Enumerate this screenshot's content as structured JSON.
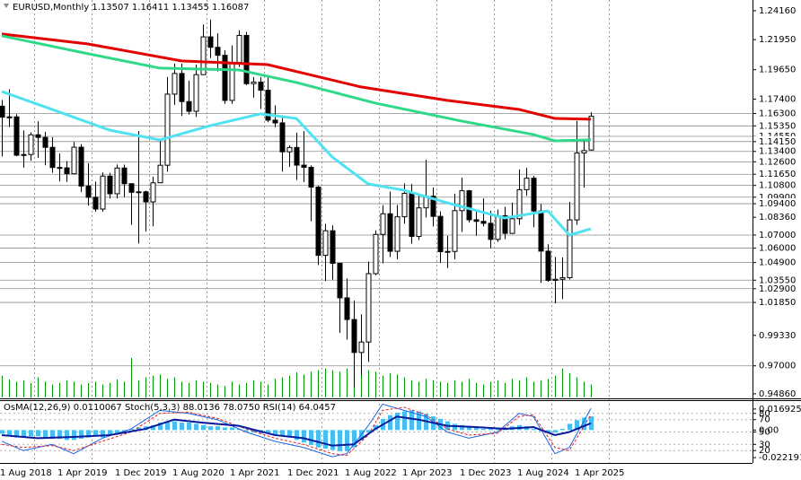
{
  "chart_data": [
    {
      "type": "candlestick",
      "title": "EURUSD,Monthly",
      "categories": [
        "1 Aug 2018",
        null,
        null,
        null,
        null,
        null,
        null,
        null,
        "1 Apr 2019",
        null,
        null,
        null,
        null,
        null,
        null,
        null,
        "1 Dec 2019",
        null,
        null,
        null,
        null,
        null,
        null,
        null,
        "1 Aug 2020",
        null,
        null,
        null,
        null,
        null,
        null,
        null,
        "1 Apr 2021",
        null,
        null,
        null,
        null,
        null,
        null,
        null,
        "1 Dec 2021",
        null,
        null,
        null,
        null,
        null,
        null,
        null,
        "1 Aug 2022",
        null,
        null,
        null,
        null,
        null,
        null,
        null,
        "1 Apr 2023",
        null,
        null,
        null,
        null,
        null,
        null,
        null,
        "1 Dec 2023",
        null,
        null,
        null,
        null,
        null,
        null,
        null,
        "1 Aug 2024",
        null,
        null,
        null,
        null,
        null,
        null,
        null,
        "1 Apr 2025",
        null,
        null
      ],
      "open": [
        1.1686,
        1.1602,
        1.1604,
        1.1311,
        1.1316,
        1.1467,
        1.1447,
        1.1371,
        1.1217,
        1.1214,
        1.1169,
        1.1372,
        1.1075,
        1.0989,
        1.0899,
        1.1151,
        1.1016,
        1.1213,
        1.1093,
        1.1027,
        1.1031,
        1.0954,
        1.11,
        1.1234,
        1.1778,
        1.1936,
        1.1721,
        1.1647,
        1.1927,
        1.2216,
        1.2136,
        1.2075,
        1.173,
        1.202,
        1.2227,
        1.1858,
        1.187,
        1.1808,
        1.1579,
        1.1558,
        1.1337,
        1.137,
        1.1235,
        1.1218,
        1.1067,
        1.0545,
        1.0733,
        1.0484,
        1.022,
        1.0054,
        0.9802,
        0.9882,
        1.0405,
        1.0705,
        1.0863,
        1.0576,
        1.084,
        1.1019,
        1.069,
        1.0908,
        1.0997,
        1.0843,
        1.0573,
        1.0575,
        1.0887,
        1.1039,
        1.0817,
        1.0805,
        1.079,
        1.0667,
        1.0848,
        1.0713,
        1.0825,
        1.1047,
        1.1135,
        1.0884,
        1.0577,
        1.0354,
        1.0362,
        1.0374,
        1.0816,
        1.1328,
        1.13507
      ],
      "high": [
        1.1734,
        1.1815,
        1.1625,
        1.15,
        1.1486,
        1.157,
        1.1488,
        1.1448,
        1.1324,
        1.1265,
        1.1412,
        1.1395,
        1.125,
        1.1109,
        1.1179,
        1.1176,
        1.124,
        1.1239,
        1.1096,
        1.1496,
        1.104,
        1.1147,
        1.1422,
        1.1909,
        1.2011,
        1.2011,
        1.1881,
        1.2004,
        1.231,
        1.2349,
        1.2243,
        1.2113,
        1.215,
        1.2266,
        1.2254,
        1.1909,
        1.1909,
        1.1909,
        1.1692,
        1.1616,
        1.1386,
        1.1483,
        1.1495,
        1.1233,
        1.1076,
        1.0787,
        1.0774,
        1.0486,
        1.0368,
        1.0198,
        1.0094,
        1.0497,
        1.0736,
        1.0929,
        1.1033,
        1.093,
        1.1095,
        1.1092,
        1.1012,
        1.1276,
        1.1065,
        1.0882,
        1.0695,
        1.1017,
        1.1139,
        1.1046,
        1.0889,
        1.0981,
        1.0885,
        1.0895,
        1.0916,
        1.0948,
        1.1202,
        1.1214,
        1.1152,
        1.0937,
        1.063,
        1.0533,
        1.0529,
        1.0954,
        1.1573,
        1.142,
        1.16411
      ],
      "low": [
        1.1301,
        1.1526,
        1.1302,
        1.1216,
        1.1269,
        1.1289,
        1.1234,
        1.1176,
        1.1111,
        1.1107,
        1.1168,
        1.1029,
        1.0926,
        1.0879,
        1.0879,
        1.0981,
        1.0981,
        1.0992,
        1.0778,
        1.0636,
        1.0727,
        1.0767,
        1.11,
        1.1185,
        1.1696,
        1.1612,
        1.1622,
        1.1603,
        1.1925,
        1.2054,
        1.1952,
        1.1704,
        1.1704,
        1.1986,
        1.1847,
        1.1752,
        1.1664,
        1.1563,
        1.1524,
        1.1186,
        1.1222,
        1.1121,
        1.1106,
        1.0806,
        1.0471,
        1.0349,
        1.0359,
        0.9952,
        0.9901,
        0.9536,
        0.9632,
        0.973,
        1.0393,
        1.0483,
        1.0533,
        1.0516,
        1.0787,
        1.0635,
        1.0662,
        1.0834,
        1.0766,
        1.0488,
        1.0448,
        1.0516,
        1.0724,
        1.0795,
        1.0695,
        1.0767,
        1.0601,
        1.0649,
        1.0668,
        1.0709,
        1.0778,
        1.1001,
        1.0761,
        1.0335,
        1.0343,
        1.0178,
        1.021,
        1.036,
        1.0778,
        1.1064,
        1.13455
      ],
      "close": [
        1.1602,
        1.1604,
        1.1311,
        1.1316,
        1.1467,
        1.1447,
        1.1371,
        1.1217,
        1.1214,
        1.1169,
        1.1372,
        1.1075,
        1.0989,
        1.0899,
        1.1151,
        1.1016,
        1.1213,
        1.1093,
        1.1027,
        1.1031,
        1.0954,
        1.11,
        1.1234,
        1.1778,
        1.1936,
        1.1721,
        1.1647,
        1.1927,
        1.2216,
        1.2136,
        1.2075,
        1.173,
        1.202,
        1.2227,
        1.1858,
        1.187,
        1.1808,
        1.1579,
        1.1558,
        1.1337,
        1.137,
        1.1235,
        1.1218,
        1.1067,
        1.0545,
        1.0733,
        1.0484,
        1.022,
        1.0054,
        0.9802,
        0.9882,
        1.0405,
        1.0705,
        1.0863,
        1.0576,
        1.084,
        1.1019,
        1.069,
        1.0908,
        1.0997,
        1.0843,
        1.0573,
        1.0575,
        1.0887,
        1.1039,
        1.0817,
        1.0805,
        1.079,
        1.0667,
        1.0848,
        1.0713,
        1.0825,
        1.1047,
        1.1135,
        1.0884,
        1.0577,
        1.0354,
        1.0362,
        1.0374,
        1.0816,
        1.1328,
        1.1346,
        1.16087
      ],
      "volume": {
        "color": "#009900",
        "values": [
          30,
          25,
          22,
          24,
          20,
          28,
          22,
          18,
          20,
          24,
          22,
          18,
          20,
          22,
          18,
          20,
          25,
          22,
          55,
          24,
          28,
          30,
          32,
          26,
          28,
          22,
          20,
          24,
          22,
          20,
          18,
          16,
          22,
          18,
          20,
          24,
          22,
          18,
          26,
          28,
          30,
          35,
          32,
          36,
          38,
          40,
          38,
          36,
          40,
          42,
          34,
          38,
          36,
          30,
          34,
          32,
          28,
          24,
          22,
          26,
          24,
          22,
          20,
          24,
          22,
          26,
          20,
          18,
          22,
          24,
          20,
          26,
          24,
          28,
          22,
          24,
          26,
          30,
          40,
          34,
          28,
          22,
          18
        ]
      },
      "vlim": [
        0,
        150
      ],
      "series": [
        {
          "color": "#e30000",
          "x": [
            0,
            12,
            25,
            37,
            50,
            62,
            72,
            77,
            82
          ],
          "values": [
            1.2238,
            1.2162,
            1.2032,
            1.2004,
            1.1833,
            1.173,
            1.1661,
            1.1592,
            1.1586
          ]
        },
        {
          "color": "#30d98a",
          "x": [
            0,
            12,
            22,
            33,
            41,
            52,
            64,
            74,
            77,
            82
          ],
          "values": [
            1.2224,
            1.2087,
            1.1977,
            1.1963,
            1.1867,
            1.1709,
            1.1572,
            1.1469,
            1.1421,
            1.1428
          ]
        },
        {
          "color": "#4ee2f2",
          "x": [
            0,
            7,
            15,
            22,
            29,
            36,
            41,
            46,
            51,
            56,
            62,
            70,
            76,
            79,
            82
          ],
          "values": [
            1.1798,
            1.1661,
            1.1503,
            1.1428,
            1.1537,
            1.1627,
            1.1592,
            1.1297,
            1.1091,
            1.1043,
            1.0947,
            1.0831,
            1.0885,
            1.07,
            1.0748
          ]
        }
      ],
      "ylim": [
        0.9458,
        1.2498
      ],
      "yticks": [
        {
          "value": 1.2416,
          "label": "1.24160"
        },
        {
          "value": 1.2195,
          "label": "1.21950"
        },
        {
          "value": 1.1965,
          "label": "1.19650"
        },
        {
          "value": 1.174,
          "label": "1.17400"
        },
        {
          "value": 1.0836,
          "label": "1.08360"
        },
        {
          "value": 0.9933,
          "label": "0.99330"
        },
        {
          "value": 0.9486,
          "label": "0.94860"
        }
      ],
      "levels": [
        {
          "value": 1.163,
          "label": "1.16300"
        },
        {
          "value": 1.1535,
          "label": "1.15350"
        },
        {
          "value": 1.1455,
          "label": "1.14550"
        },
        {
          "value": 1.1415,
          "label": "1.14150"
        },
        {
          "value": 1.134,
          "label": "1.13400"
        },
        {
          "value": 1.126,
          "label": "1.12600"
        },
        {
          "value": 1.1165,
          "label": "1.11650"
        },
        {
          "value": 1.108,
          "label": "1.10800"
        },
        {
          "value": 1.099,
          "label": "1.09900"
        },
        {
          "value": 1.094,
          "label": "1.09400"
        },
        {
          "value": 1.07,
          "label": "1.07000"
        },
        {
          "value": 1.06,
          "label": "1.06000"
        },
        {
          "value": 1.049,
          "label": "1.04900"
        },
        {
          "value": 1.0355,
          "label": "1.03550"
        },
        {
          "value": 1.029,
          "label": "1.02900"
        },
        {
          "value": 1.0185,
          "label": "1.01850"
        },
        {
          "value": 0.97,
          "label": "0.97000"
        }
      ],
      "grid": true
    },
    {
      "type": "oscillator",
      "status": [
        "OsMA(12,26,9) 0.0110067",
        "Stoch(5,3,3) 88.0136 78.0750",
        "RSI(14) 64.0457"
      ],
      "histogram": {
        "color": "#45bff0",
        "values": [
          -0.003,
          -0.004,
          -0.006,
          -0.006,
          -0.005,
          -0.005,
          -0.006,
          -0.007,
          -0.007,
          -0.008,
          -0.008,
          -0.007,
          -0.006,
          -0.005,
          -0.006,
          -0.004,
          -0.003,
          -0.002,
          0.001,
          0.002,
          0.003,
          0.004,
          0.006,
          0.007,
          0.007,
          0.006,
          0.006,
          0.005,
          0.004,
          0.003,
          0.003,
          0.002,
          0.002,
          0.001,
          -0.001,
          -0.002,
          -0.003,
          -0.003,
          -0.004,
          -0.005,
          -0.006,
          -0.008,
          -0.01,
          -0.012,
          -0.014,
          -0.015,
          -0.016,
          -0.017,
          -0.017,
          -0.014,
          -0.008,
          -0.002,
          0.004,
          0.009,
          0.012,
          0.014,
          0.015,
          0.016,
          0.015,
          0.013,
          0.011,
          0.009,
          0.007,
          0.005,
          0.004,
          0.003,
          0.002,
          0.001,
          0.001,
          0.002,
          0.002,
          0.003,
          0.004,
          0.003,
          0.001,
          -0.001,
          -0.002,
          -0.002,
          0.001,
          0.005,
          0.008,
          0.01,
          0.0110067
        ]
      },
      "series": [
        {
          "color": "#1a64e6",
          "axis": "y2",
          "x": [
            0,
            3,
            7,
            10,
            14,
            18,
            22,
            26,
            30,
            34,
            38,
            42,
            46,
            48,
            51,
            53,
            56,
            59,
            62,
            65,
            69,
            72,
            74,
            77,
            79,
            82
          ],
          "values": [
            35,
            20,
            30,
            15,
            40,
            55,
            85,
            80,
            70,
            50,
            35,
            25,
            10,
            15,
            60,
            95,
            85,
            75,
            50,
            40,
            50,
            80,
            75,
            15,
            25,
            88.0136
          ]
        },
        {
          "color": "#e02020",
          "axis": "y2",
          "x": [
            0,
            3,
            7,
            10,
            14,
            18,
            22,
            26,
            30,
            34,
            38,
            42,
            46,
            48,
            51,
            53,
            56,
            59,
            62,
            65,
            69,
            72,
            74,
            77,
            79,
            82
          ],
          "values": [
            30,
            25,
            28,
            20,
            35,
            50,
            80,
            82,
            72,
            55,
            40,
            30,
            15,
            12,
            45,
            85,
            90,
            78,
            55,
            45,
            48,
            75,
            78,
            25,
            20,
            78.075
          ]
        },
        {
          "color": "#0a1a9c",
          "axis": "y2",
          "x": [
            0,
            5,
            10,
            15,
            20,
            24,
            28,
            33,
            38,
            42,
            46,
            49,
            52,
            55,
            58,
            62,
            66,
            70,
            74,
            77,
            79,
            82
          ],
          "values": [
            45,
            40,
            42,
            45,
            55,
            70,
            65,
            60,
            45,
            40,
            28,
            30,
            55,
            75,
            70,
            60,
            58,
            55,
            58,
            45,
            50,
            64.0457
          ]
        }
      ],
      "ylim": [
        -0.026458,
        0.023326
      ],
      "yticks": [
        0.016925,
        {
          "value": 0,
          "label": "0.00"
        },
        -0.022191
      ],
      "y2lim": [
        0,
        100
      ],
      "y2ticks": [
        80,
        70,
        50,
        30,
        20
      ]
    }
  ]
}
